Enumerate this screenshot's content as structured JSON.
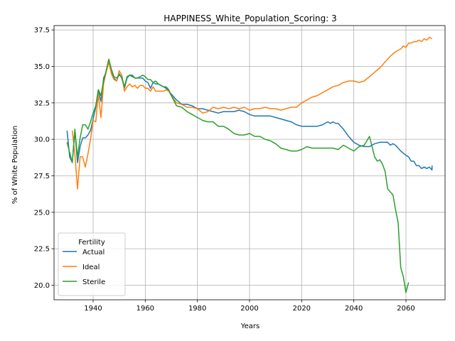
{
  "chart_data": {
    "type": "line",
    "title": "HAPPINESS_White_Population_Scoring: 3",
    "xlabel": "Years",
    "ylabel": "% of White Population",
    "xlim": [
      1925,
      2075
    ],
    "ylim": [
      19.0,
      37.8
    ],
    "xticks": [
      1940,
      1960,
      1980,
      2000,
      2020,
      2040,
      2060
    ],
    "yticks": [
      20.0,
      22.5,
      25.0,
      27.5,
      30.0,
      32.5,
      35.0,
      37.5
    ],
    "xtick_labels": [
      "1940",
      "1960",
      "1980",
      "2000",
      "2020",
      "2040",
      "2060"
    ],
    "ytick_labels": [
      "20.0",
      "22.5",
      "25.0",
      "27.5",
      "30.0",
      "32.5",
      "35.0",
      "37.5"
    ],
    "grid": true,
    "legend": {
      "title": "Fertility",
      "placement": "lower-left"
    },
    "series": [
      {
        "name": "Actual",
        "color": "#1f77b4",
        "x": [
          1930,
          1931,
          1932,
          1933,
          1934,
          1935,
          1936,
          1937,
          1938,
          1939,
          1940,
          1941,
          1942,
          1943,
          1944,
          1945,
          1946,
          1947,
          1948,
          1949,
          1950,
          1951,
          1952,
          1953,
          1954,
          1955,
          1956,
          1957,
          1958,
          1959,
          1960,
          1961,
          1962,
          1963,
          1964,
          1965,
          1966,
          1967,
          1968,
          1969,
          1970,
          1972,
          1974,
          1976,
          1978,
          1980,
          1982,
          1984,
          1986,
          1988,
          1990,
          1992,
          1994,
          1996,
          1998,
          2000,
          2002,
          2004,
          2006,
          2008,
          2010,
          2012,
          2014,
          2016,
          2018,
          2020,
          2022,
          2024,
          2026,
          2028,
          2030,
          2031,
          2032,
          2033,
          2034,
          2035,
          2036,
          2038,
          2040,
          2042,
          2044,
          2046,
          2048,
          2050,
          2052,
          2053,
          2054,
          2055,
          2056,
          2058,
          2060,
          2061,
          2062,
          2063,
          2064,
          2065,
          2066,
          2067,
          2068,
          2069,
          2070
        ],
        "y": [
          30.6,
          28.8,
          28.4,
          30.6,
          28.4,
          29.5,
          30.1,
          30.1,
          30.3,
          30.6,
          31.4,
          32.2,
          33.4,
          32.6,
          34.2,
          34.6,
          35.4,
          34.6,
          34.2,
          34.0,
          34.5,
          34.2,
          33.5,
          34.2,
          34.4,
          34.4,
          34.2,
          34.2,
          34.2,
          34.2,
          34.0,
          33.9,
          33.5,
          33.9,
          33.8,
          33.8,
          33.7,
          33.6,
          33.5,
          33.3,
          33.1,
          32.7,
          32.4,
          32.4,
          32.3,
          32.1,
          32.1,
          32.0,
          31.9,
          31.8,
          31.9,
          31.9,
          31.9,
          32.0,
          31.9,
          31.7,
          31.6,
          31.6,
          31.6,
          31.6,
          31.5,
          31.4,
          31.3,
          31.2,
          31.0,
          30.9,
          30.9,
          30.9,
          30.9,
          31.0,
          31.2,
          31.1,
          31.2,
          31.1,
          31.1,
          30.9,
          30.7,
          30.2,
          29.8,
          29.6,
          29.5,
          29.5,
          29.7,
          29.8,
          29.8,
          29.8,
          29.6,
          29.7,
          29.6,
          29.2,
          28.9,
          28.8,
          28.5,
          28.5,
          28.2,
          28.2,
          28.0,
          28.1,
          28.0,
          28.1,
          27.9
        ],
        "y_tail": [
          28.2
        ]
      },
      {
        "name": "Ideal",
        "color": "#ff7f0e",
        "x": [
          1932,
          1933,
          1934,
          1935,
          1936,
          1937,
          1938,
          1939,
          1940,
          1941,
          1942,
          1943,
          1944,
          1945,
          1946,
          1947,
          1948,
          1949,
          1950,
          1951,
          1952,
          1953,
          1954,
          1955,
          1956,
          1957,
          1958,
          1959,
          1960,
          1961,
          1962,
          1963,
          1964,
          1965,
          1966,
          1967,
          1968,
          1969,
          1970,
          1972,
          1974,
          1976,
          1978,
          1980,
          1982,
          1984,
          1986,
          1988,
          1990,
          1992,
          1994,
          1996,
          1998,
          2000,
          2002,
          2004,
          2006,
          2008,
          2010,
          2012,
          2014,
          2016,
          2018,
          2020,
          2022,
          2024,
          2026,
          2028,
          2030,
          2032,
          2034,
          2036,
          2038,
          2040,
          2042,
          2044,
          2046,
          2048,
          2050,
          2052,
          2054,
          2056,
          2058,
          2059,
          2060,
          2061,
          2062,
          2063,
          2064,
          2065,
          2066,
          2067,
          2068,
          2069,
          2070
        ],
        "y": [
          30.6,
          29.0,
          26.6,
          28.8,
          28.8,
          28.1,
          29.0,
          30.0,
          31.3,
          31.2,
          33.1,
          31.5,
          33.8,
          34.6,
          35.3,
          34.5,
          34.1,
          34.0,
          34.7,
          34.4,
          33.3,
          33.6,
          33.8,
          33.6,
          33.7,
          33.5,
          33.7,
          33.7,
          33.5,
          33.5,
          33.3,
          33.6,
          33.3,
          33.3,
          33.3,
          33.3,
          33.4,
          33.3,
          33.0,
          32.5,
          32.4,
          32.2,
          32.2,
          32.1,
          31.8,
          31.9,
          32.2,
          32.1,
          32.2,
          32.1,
          32.2,
          32.1,
          32.2,
          32.0,
          32.1,
          32.1,
          32.2,
          32.1,
          32.1,
          32.0,
          32.1,
          32.2,
          32.2,
          32.5,
          32.7,
          32.9,
          33.0,
          33.2,
          33.4,
          33.6,
          33.7,
          33.9,
          34.0,
          34.0,
          33.9,
          34.0,
          34.3,
          34.6,
          34.9,
          35.3,
          35.7,
          36.0,
          36.2,
          36.4,
          36.3,
          36.6,
          36.6,
          36.7,
          36.7,
          36.8,
          36.7,
          36.9,
          36.8,
          37.0,
          36.9
        ]
      },
      {
        "name": "Sterile",
        "color": "#2ca02c",
        "x": [
          1930,
          1931,
          1932,
          1933,
          1934,
          1935,
          1936,
          1937,
          1938,
          1939,
          1940,
          1941,
          1942,
          1943,
          1944,
          1945,
          1946,
          1947,
          1948,
          1949,
          1950,
          1951,
          1952,
          1953,
          1954,
          1955,
          1956,
          1957,
          1958,
          1959,
          1960,
          1961,
          1962,
          1963,
          1964,
          1965,
          1966,
          1967,
          1968,
          1969,
          1970,
          1972,
          1974,
          1976,
          1978,
          1980,
          1982,
          1984,
          1986,
          1988,
          1990,
          1992,
          1994,
          1996,
          1998,
          2000,
          2002,
          2004,
          2006,
          2008,
          2010,
          2012,
          2014,
          2016,
          2018,
          2020,
          2022,
          2024,
          2026,
          2028,
          2030,
          2032,
          2034,
          2036,
          2038,
          2040,
          2042,
          2044,
          2046,
          2048,
          2049,
          2050,
          2051,
          2052,
          2053,
          2054,
          2055,
          2056,
          2057,
          2058,
          2059,
          2060,
          2061
        ],
        "y": [
          29.8,
          29.1,
          28.4,
          30.7,
          28.8,
          30.1,
          31.0,
          31.0,
          30.7,
          31.2,
          31.8,
          32.3,
          33.4,
          33.0,
          34.0,
          34.7,
          35.5,
          34.8,
          34.3,
          34.2,
          34.4,
          34.3,
          33.6,
          34.3,
          34.4,
          34.3,
          34.2,
          34.2,
          34.3,
          34.4,
          34.3,
          34.1,
          34.1,
          33.9,
          34.0,
          33.8,
          33.7,
          33.6,
          33.6,
          33.4,
          33.0,
          32.3,
          32.2,
          31.9,
          31.7,
          31.5,
          31.3,
          31.2,
          31.2,
          30.9,
          30.9,
          30.7,
          30.4,
          30.3,
          30.3,
          30.4,
          30.2,
          30.2,
          30.0,
          29.9,
          29.7,
          29.4,
          29.3,
          29.2,
          29.2,
          29.3,
          29.5,
          29.4,
          29.4,
          29.4,
          29.4,
          29.4,
          29.3,
          29.6,
          29.4,
          29.2,
          29.5,
          29.6,
          30.2,
          28.8,
          28.5,
          28.6,
          28.3,
          27.8,
          26.6,
          26.4,
          26.2,
          25.2,
          24.3,
          21.2,
          20.6,
          19.5,
          20.2
        ]
      }
    ]
  }
}
